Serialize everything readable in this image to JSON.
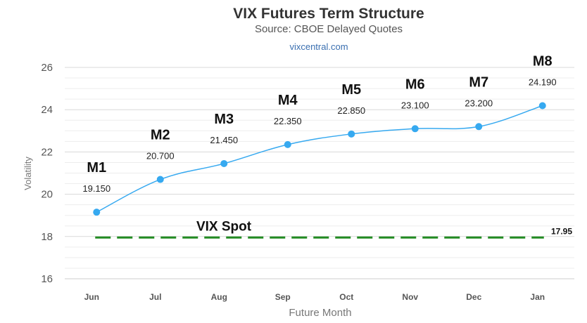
{
  "chart_data": {
    "type": "line",
    "title": "VIX Futures Term Structure",
    "subtitle": "Source: CBOE Delayed Quotes",
    "credit": "vixcentral.com",
    "xlabel": "Future Month",
    "ylabel": "Volatility",
    "categories": [
      "Jun",
      "Jul",
      "Aug",
      "Sep",
      "Oct",
      "Nov",
      "Dec",
      "Jan"
    ],
    "ylim": [
      16,
      26
    ],
    "yticks": [
      16,
      18,
      20,
      22,
      24,
      26
    ],
    "grid": true,
    "series": [
      {
        "values": [
          19.15,
          20.7,
          21.45,
          22.35,
          22.85,
          23.1,
          23.2,
          24.19
        ],
        "value_labels": [
          "19.150",
          "20.700",
          "21.450",
          "22.350",
          "22.850",
          "23.100",
          "23.200",
          "24.190"
        ],
        "point_labels": [
          "M1",
          "M2",
          "M3",
          "M4",
          "M5",
          "M6",
          "M7",
          "M8"
        ],
        "color": "#36a9f0"
      }
    ],
    "spot": {
      "name": "VIX Spot",
      "value": 17.95,
      "value_label": "17.95",
      "color": "#228b22"
    }
  }
}
